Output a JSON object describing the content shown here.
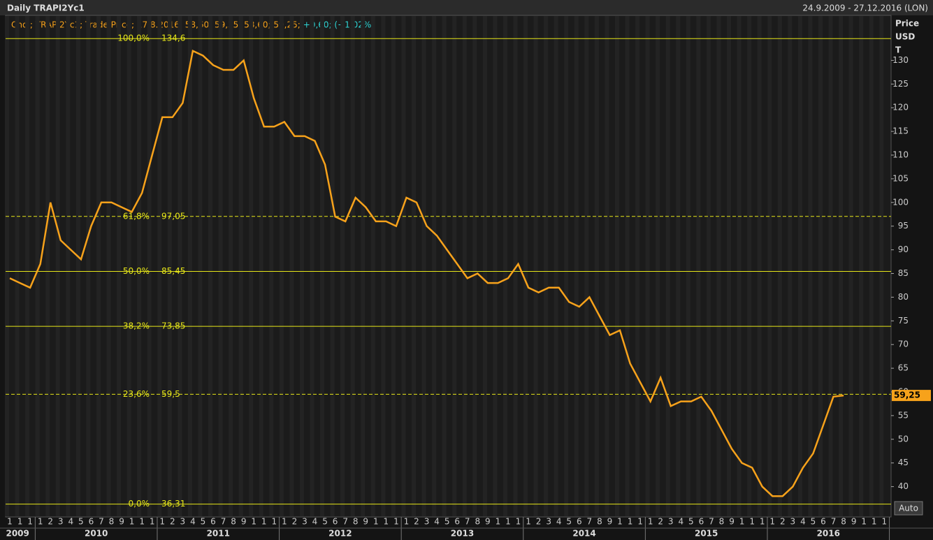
{
  "chart_data": {
    "type": "line",
    "title": "Daily TRAPI2Yc1",
    "date_range": "24.9.2009 - 27.12.2016 (LON)",
    "legend_text": "Cndl; TRAPI2Yc1; Trade Price; 17.8.2016; 58,60; 59,35; 58,60; 59,25;",
    "legend_change": "+0,60; (+1,02%)",
    "axis_title": [
      "Price",
      "USD",
      "T"
    ],
    "auto_button": "Auto",
    "color": "#f7a21b",
    "x": [
      "2009-10",
      "2009-11",
      "2009-12",
      "2010-01",
      "2010-02",
      "2010-03",
      "2010-04",
      "2010-05",
      "2010-06",
      "2010-07",
      "2010-08",
      "2010-09",
      "2010-10",
      "2010-11",
      "2010-12",
      "2011-01",
      "2011-02",
      "2011-03",
      "2011-04",
      "2011-05",
      "2011-06",
      "2011-07",
      "2011-08",
      "2011-09",
      "2011-10",
      "2011-11",
      "2011-12",
      "2012-01",
      "2012-02",
      "2012-03",
      "2012-04",
      "2012-05",
      "2012-06",
      "2012-07",
      "2012-08",
      "2012-09",
      "2012-10",
      "2012-11",
      "2012-12",
      "2013-01",
      "2013-02",
      "2013-03",
      "2013-04",
      "2013-05",
      "2013-06",
      "2013-07",
      "2013-08",
      "2013-09",
      "2013-10",
      "2013-11",
      "2013-12",
      "2014-01",
      "2014-02",
      "2014-03",
      "2014-04",
      "2014-05",
      "2014-06",
      "2014-07",
      "2014-08",
      "2014-09",
      "2014-10",
      "2014-11",
      "2014-12",
      "2015-01",
      "2015-02",
      "2015-03",
      "2015-04",
      "2015-05",
      "2015-06",
      "2015-07",
      "2015-08",
      "2015-09",
      "2015-10",
      "2015-11",
      "2015-12",
      "2016-01",
      "2016-02",
      "2016-03",
      "2016-04",
      "2016-05",
      "2016-06",
      "2016-07",
      "2016-08"
    ],
    "values": [
      84,
      83,
      82,
      87,
      100,
      92,
      90,
      88,
      95,
      100,
      100,
      99,
      98,
      102,
      110,
      118,
      118,
      121,
      132,
      131,
      129,
      128,
      128,
      130,
      122,
      116,
      116,
      117,
      114,
      114,
      113,
      108,
      97,
      96,
      101,
      99,
      96,
      96,
      95,
      101,
      100,
      95,
      93,
      90,
      87,
      84,
      85,
      83,
      83,
      84,
      87,
      82,
      81,
      82,
      82,
      79,
      78,
      80,
      76,
      72,
      73,
      66,
      62,
      58,
      63,
      57,
      58,
      58,
      59,
      56,
      52,
      48,
      45,
      44,
      40,
      38,
      38,
      40,
      44,
      47,
      53,
      59,
      59.25
    ],
    "ylim": [
      33.6,
      139.5
    ],
    "yticks": [
      40,
      45,
      50,
      55,
      60,
      65,
      70,
      75,
      80,
      85,
      90,
      95,
      100,
      105,
      110,
      115,
      120,
      125,
      130
    ],
    "last": {
      "value": 59.25,
      "label": "59,25"
    },
    "levels": [
      {
        "percent": {
          "value": 100,
          "label": "100,0%"
        },
        "price": {
          "value": 134.6,
          "label": "134,6"
        },
        "dashed": false
      },
      {
        "percent": {
          "value": 61.8,
          "label": "61,8%"
        },
        "price": {
          "value": 97.05,
          "label": "97,05"
        },
        "dashed": true
      },
      {
        "percent": {
          "value": 50,
          "label": "50,0%"
        },
        "price": {
          "value": 85.45,
          "label": "85,45"
        },
        "dashed": false
      },
      {
        "percent": {
          "value": 38.2,
          "label": "38,2%"
        },
        "price": {
          "value": 73.85,
          "label": "73,85"
        },
        "dashed": false
      },
      {
        "percent": {
          "value": 23.6,
          "label": "23,6%"
        },
        "price": {
          "value": 59.5,
          "label": "59,5"
        },
        "dashed": true
      },
      {
        "percent": {
          "value": 0,
          "label": "0,0%"
        },
        "price": {
          "value": 36.31,
          "label": "36,31"
        },
        "dashed": false
      }
    ],
    "month_labels": [
      "1",
      "1",
      "1",
      "1",
      "2",
      "3",
      "4",
      "5",
      "6",
      "7",
      "8",
      "9",
      "1",
      "1",
      "1",
      "1",
      "2",
      "3",
      "4",
      "5",
      "6",
      "7",
      "8",
      "9",
      "1",
      "1",
      "1",
      "1",
      "2",
      "3",
      "4",
      "5",
      "6",
      "7",
      "8",
      "9",
      "1",
      "1",
      "1",
      "1",
      "2",
      "3",
      "4",
      "5",
      "6",
      "7",
      "8",
      "9",
      "1",
      "1",
      "1",
      "1",
      "2",
      "3",
      "4",
      "5",
      "6",
      "7",
      "8",
      "9",
      "1",
      "1",
      "1",
      "1",
      "2",
      "3",
      "4",
      "5",
      "6",
      "7",
      "8",
      "9",
      "1",
      "1",
      "1",
      "1",
      "2",
      "3",
      "4",
      "5",
      "6",
      "7",
      "8",
      "9",
      "1",
      "1",
      "1"
    ],
    "years": [
      {
        "label": "2009",
        "months": 3
      },
      {
        "label": "2010",
        "months": 12
      },
      {
        "label": "2011",
        "months": 12
      },
      {
        "label": "2012",
        "months": 12
      },
      {
        "label": "2013",
        "months": 12
      },
      {
        "label": "2014",
        "months": 12
      },
      {
        "label": "2015",
        "months": 12
      },
      {
        "label": "2016",
        "months": 12
      }
    ]
  }
}
